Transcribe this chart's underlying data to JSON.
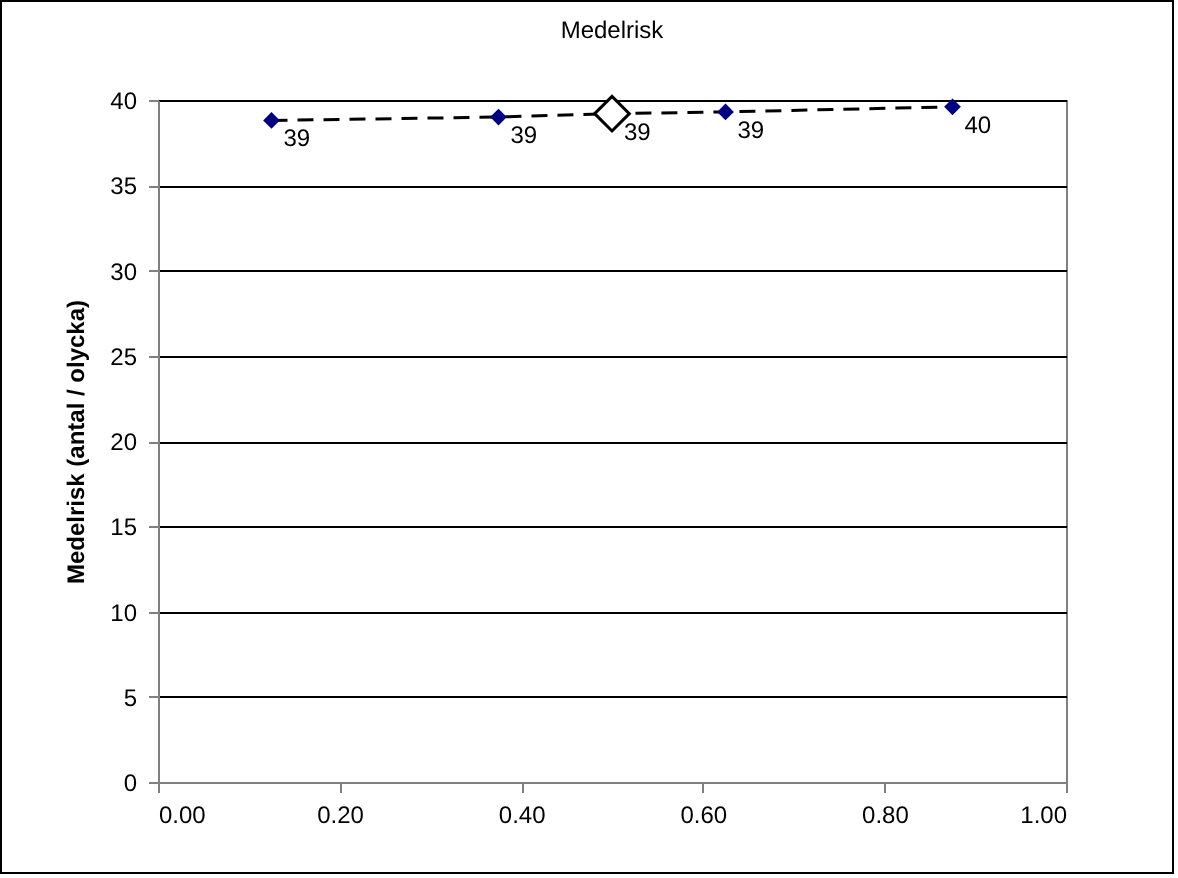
{
  "chart_data": {
    "type": "line",
    "title": "Medelrisk",
    "ylabel": "Medelrisk (antal / olycka)",
    "xlim": [
      0,
      1
    ],
    "xticks": [
      {
        "value": 0,
        "label": "0.00"
      },
      {
        "value": 0.2,
        "label": "0.20"
      },
      {
        "value": 0.4,
        "label": "0.40"
      },
      {
        "value": 0.6,
        "label": "0.60"
      },
      {
        "value": 0.8,
        "label": "0.80"
      },
      {
        "value": 1,
        "label": "1.00"
      }
    ],
    "ylim": [
      0,
      40
    ],
    "yticks": [
      0,
      5,
      10,
      15,
      20,
      25,
      30,
      35,
      40
    ],
    "grid": "y",
    "series": [
      {
        "x": [
          0.125,
          0.375,
          0.5,
          0.625,
          0.875
        ],
        "values": [
          38.8,
          39.0,
          39.2,
          39.3,
          39.6
        ],
        "color": "#000000",
        "line_style": "dashed",
        "marker": "none"
      },
      {
        "type": "scatter",
        "x": [
          0.125,
          0.375,
          0.625,
          0.875
        ],
        "values": [
          38.8,
          39.0,
          39.3,
          39.6
        ],
        "color": "#000080",
        "marker": "diamond",
        "value_labels": [
          "39",
          "39",
          "39",
          "40"
        ]
      },
      {
        "type": "scatter",
        "x": [
          0.5
        ],
        "values": [
          39.2
        ],
        "color": "#000000",
        "marker": "diamond",
        "value_labels": [
          "39"
        ]
      }
    ]
  }
}
